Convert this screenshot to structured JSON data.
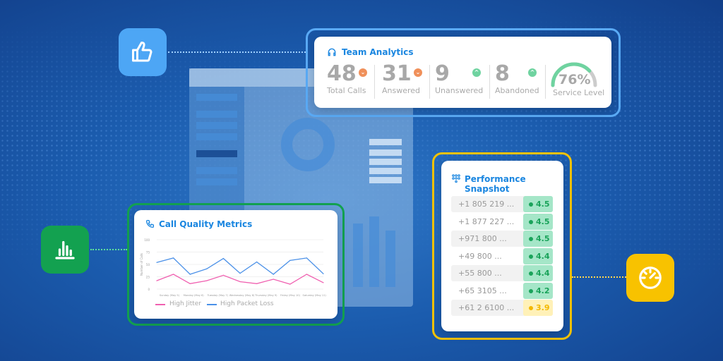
{
  "colors": {
    "accent": "#1a86e0",
    "good": "#1aa35a",
    "warn": "#f3b800",
    "down": "#f0905a",
    "up": "#6fd3a0"
  },
  "icons": {
    "like": "thumbs-up-icon",
    "chart": "bar-chart-icon",
    "gauge": "speedometer-icon"
  },
  "team_analytics": {
    "title": "Team Analytics",
    "icon": "headset-icon",
    "stats": [
      {
        "value": "48",
        "label": "Total Calls",
        "trend": "down"
      },
      {
        "value": "31",
        "label": "Answered",
        "trend": "down"
      },
      {
        "value": "9",
        "label": "Unanswered",
        "trend": "up"
      },
      {
        "value": "8",
        "label": "Abandoned",
        "trend": "up"
      }
    ],
    "service_level": {
      "value": "76%",
      "label": "Service Level",
      "fraction": 0.76
    }
  },
  "call_quality": {
    "title": "Call Quality Metrics",
    "icon": "phone-icon",
    "chart_data": {
      "type": "line",
      "ylabel": "Number of Calls",
      "yticks": [
        0,
        25,
        50,
        75,
        100
      ],
      "ylim": [
        0,
        100
      ],
      "categories": [
        "Sunday (May 5)",
        "Monday (May 6)",
        "Tuesday (May 7)",
        "Wednesday (May 8)",
        "Thursday (May 9)",
        "Friday (May 10)",
        "Saturday (May 11)"
      ],
      "x": [
        0,
        1,
        2,
        3,
        4,
        5,
        6,
        7,
        8,
        9,
        10
      ],
      "series": [
        {
          "name": "High Jitter",
          "color": "#f060b0",
          "values": [
            17,
            30,
            11,
            17,
            28,
            15,
            11,
            20,
            10,
            30,
            13
          ]
        },
        {
          "name": "High Packet Loss",
          "color": "#4a90e8",
          "values": [
            54,
            63,
            30,
            41,
            62,
            32,
            55,
            30,
            58,
            63,
            31
          ]
        }
      ],
      "legend": "bottom"
    }
  },
  "performance": {
    "title": "Performance Snapshot",
    "icon": "dialpad-icon",
    "rows": [
      {
        "phone": "+1 805 219 ...",
        "score": "4.5",
        "status": "good"
      },
      {
        "phone": "+1 877 227 ...",
        "score": "4.5",
        "status": "good"
      },
      {
        "phone": "+971 800 ...",
        "score": "4.5",
        "status": "good"
      },
      {
        "phone": "+49 800 ...",
        "score": "4.4",
        "status": "good"
      },
      {
        "phone": "+55 800 ...",
        "score": "4.4",
        "status": "good"
      },
      {
        "phone": "+65 3105 ...",
        "score": "4.2",
        "status": "good"
      },
      {
        "phone": "+61 2 6100 ...",
        "score": "3.9",
        "status": "warn"
      }
    ]
  }
}
